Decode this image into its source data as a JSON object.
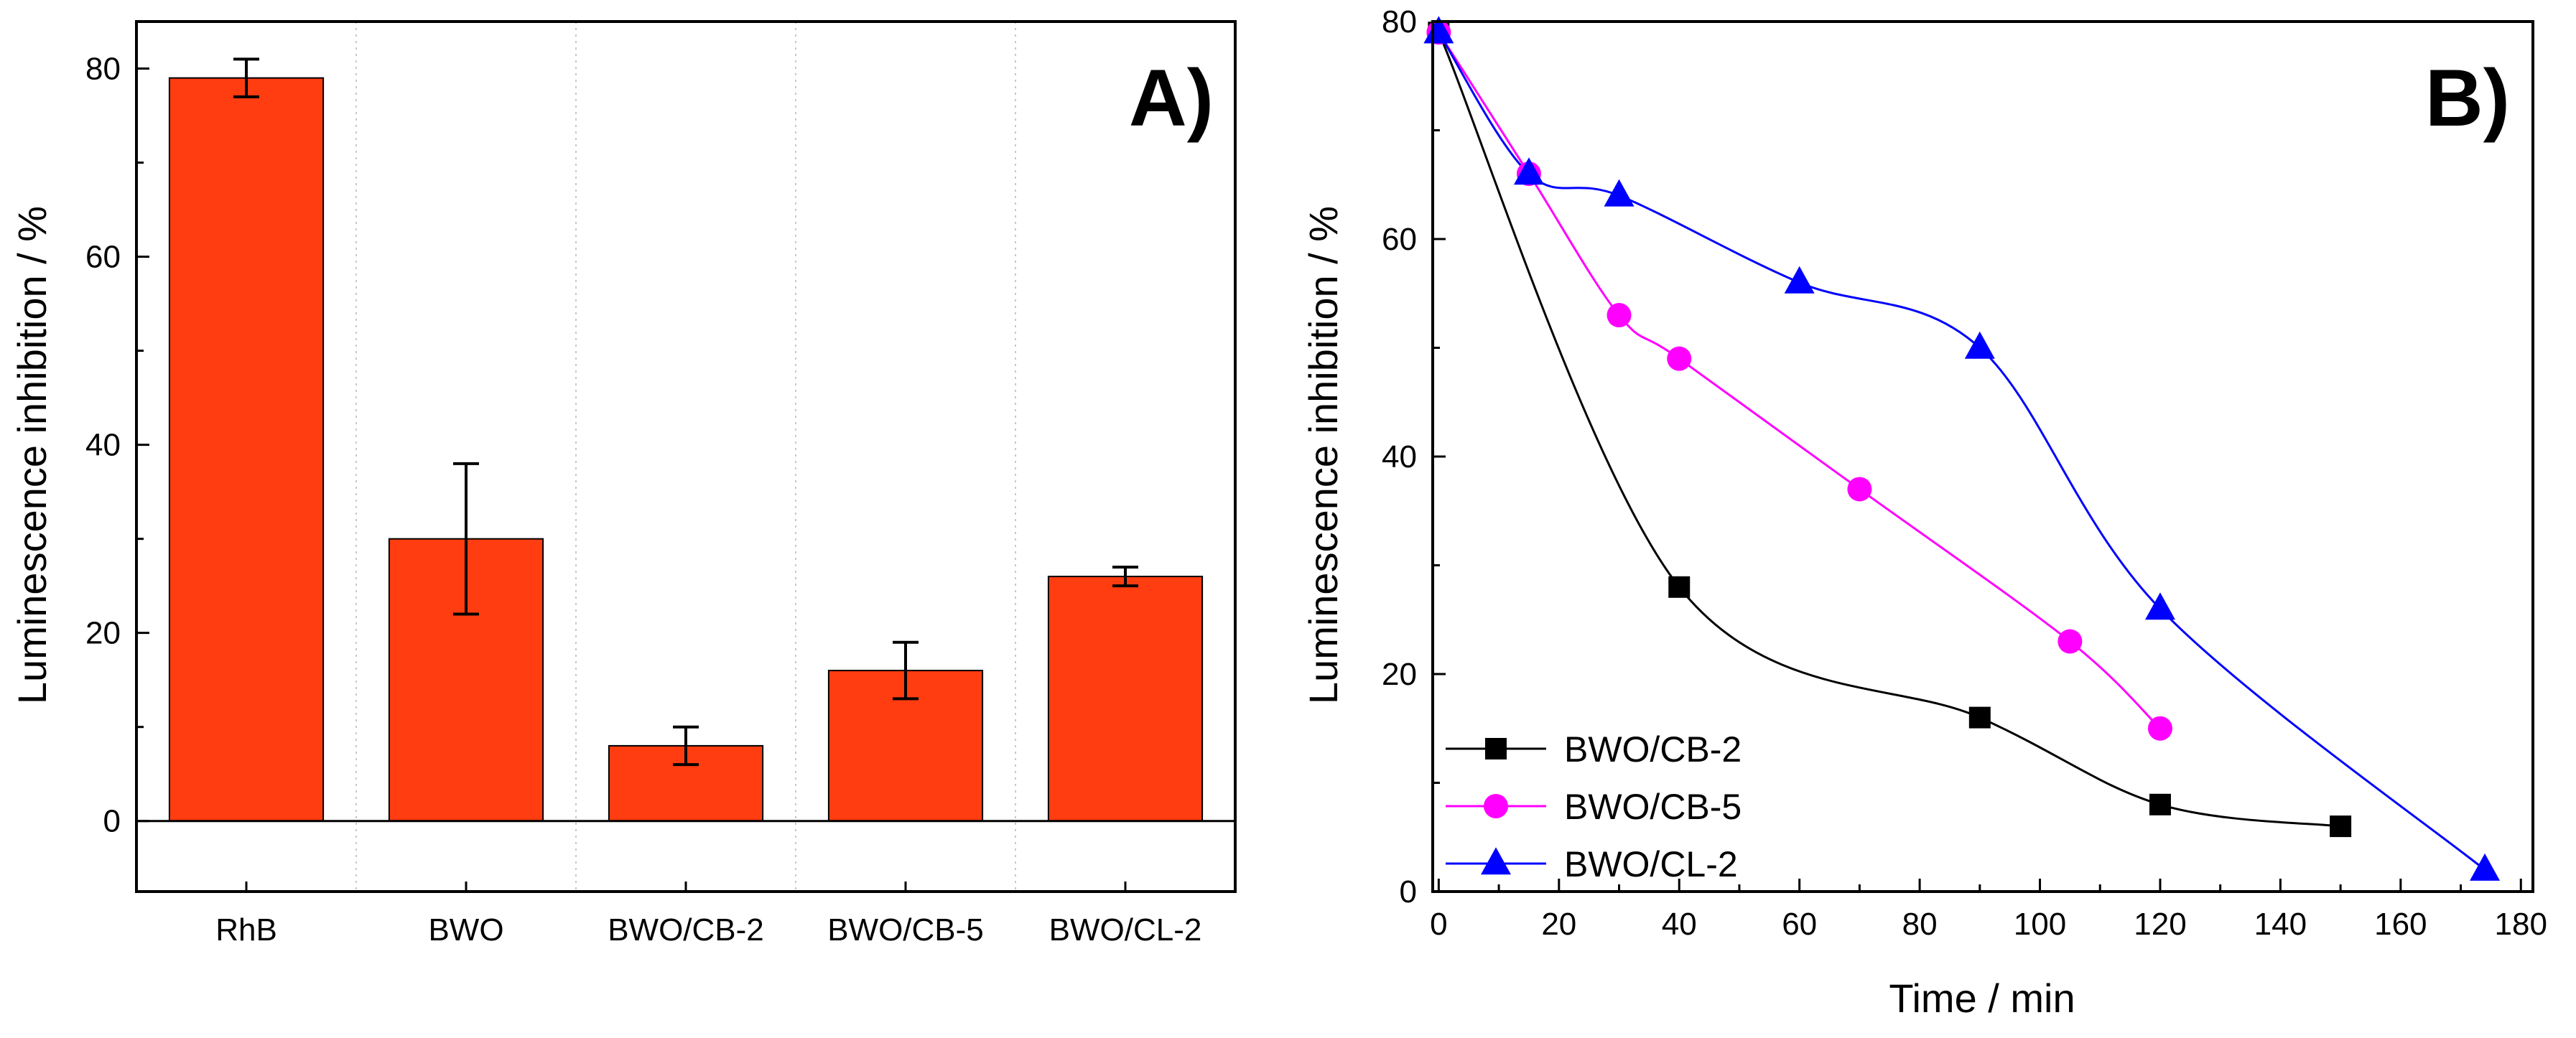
{
  "chart_data": [
    {
      "type": "bar",
      "panel_label": "A)",
      "categories": [
        "RhB",
        "BWO",
        "BWO/CB-2",
        "BWO/CB-5",
        "BWO/CL-2"
      ],
      "values": [
        79,
        30,
        8,
        16,
        26
      ],
      "error": [
        2,
        8,
        2,
        3,
        1
      ],
      "ylabel": "Luminescence inhibition / %",
      "xlabel": "",
      "ylim": [
        -7.5,
        85
      ],
      "yticks": [
        0,
        20,
        40,
        60,
        80
      ],
      "bar_color": "#ff3d10",
      "zero_line": true,
      "vertical_grid": true
    },
    {
      "type": "line",
      "panel_label": "B)",
      "xlabel": "Time / min",
      "ylabel": "Luminescence inhibition / %",
      "xlim": [
        -1,
        182
      ],
      "ylim": [
        0,
        80
      ],
      "xticks": [
        0,
        20,
        40,
        60,
        80,
        100,
        120,
        140,
        160,
        180
      ],
      "yticks": [
        0,
        20,
        40,
        60,
        80
      ],
      "legend_position": "bottom-left",
      "series": [
        {
          "name": "BWO/CB-2",
          "marker": "square",
          "color": "#000000",
          "x": [
            0,
            40,
            90,
            120,
            150
          ],
          "y": [
            79,
            28,
            16,
            8,
            6
          ]
        },
        {
          "name": "BWO/CB-5",
          "marker": "circle",
          "color": "#ff00ff",
          "x": [
            0,
            15,
            30,
            40,
            70,
            105,
            120
          ],
          "y": [
            79,
            66,
            53,
            49,
            37,
            23,
            15
          ]
        },
        {
          "name": "BWO/CL-2",
          "marker": "triangle",
          "color": "#0000ff",
          "x": [
            0,
            15,
            30,
            60,
            90,
            120,
            174
          ],
          "y": [
            79,
            66,
            64,
            56,
            50,
            26,
            2
          ]
        }
      ]
    }
  ]
}
